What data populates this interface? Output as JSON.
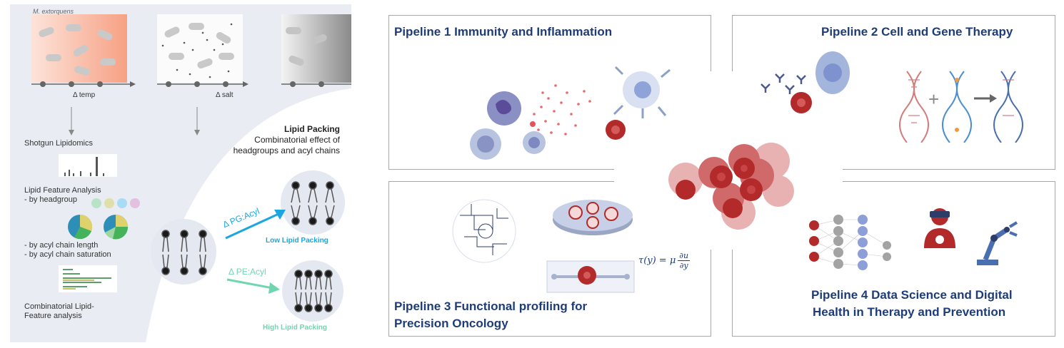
{
  "left": {
    "organism": "M. extorquens",
    "delta_temp": "Δ temp",
    "delta_salt": "Δ salt",
    "step1": "Shotgun Lipidomics",
    "step2": "Lipid Feature Analysis",
    "step2_sub": "- by headgroup",
    "step3a": "- by acyl chain length",
    "step3b": "- by acyl chain saturation",
    "step4a": "Combinatorial Lipid-",
    "step4b": "Feature analysis",
    "lipid_title": "Lipid Packing",
    "lipid_sub1": "Combinatorial effect of",
    "lipid_sub2": "headgroups and acyl chains",
    "arrow_pg": "Δ PG:Acyl",
    "arrow_pe": "Δ PE:Acyl",
    "low": "Low Lipid Packing",
    "high": "High Lipid Packing",
    "colors": {
      "pg": "#1aa6e0",
      "pe": "#6fd6b0"
    }
  },
  "pipelines": {
    "p1": "Pipeline 1  Immunity and Inflammation",
    "p2": "Pipeline 2 Cell and Gene Therapy",
    "p3a": "Pipeline 3 Functional profiling for",
    "p3b": "Precision Oncology",
    "p4a": "Pipeline 4 Data Science and Digital",
    "p4b": "Health in Therapy and Prevention",
    "title_color": "#1e3c78"
  },
  "formula": {
    "lhs": "τ(y) = μ",
    "num": "∂u",
    "den": "∂y"
  }
}
